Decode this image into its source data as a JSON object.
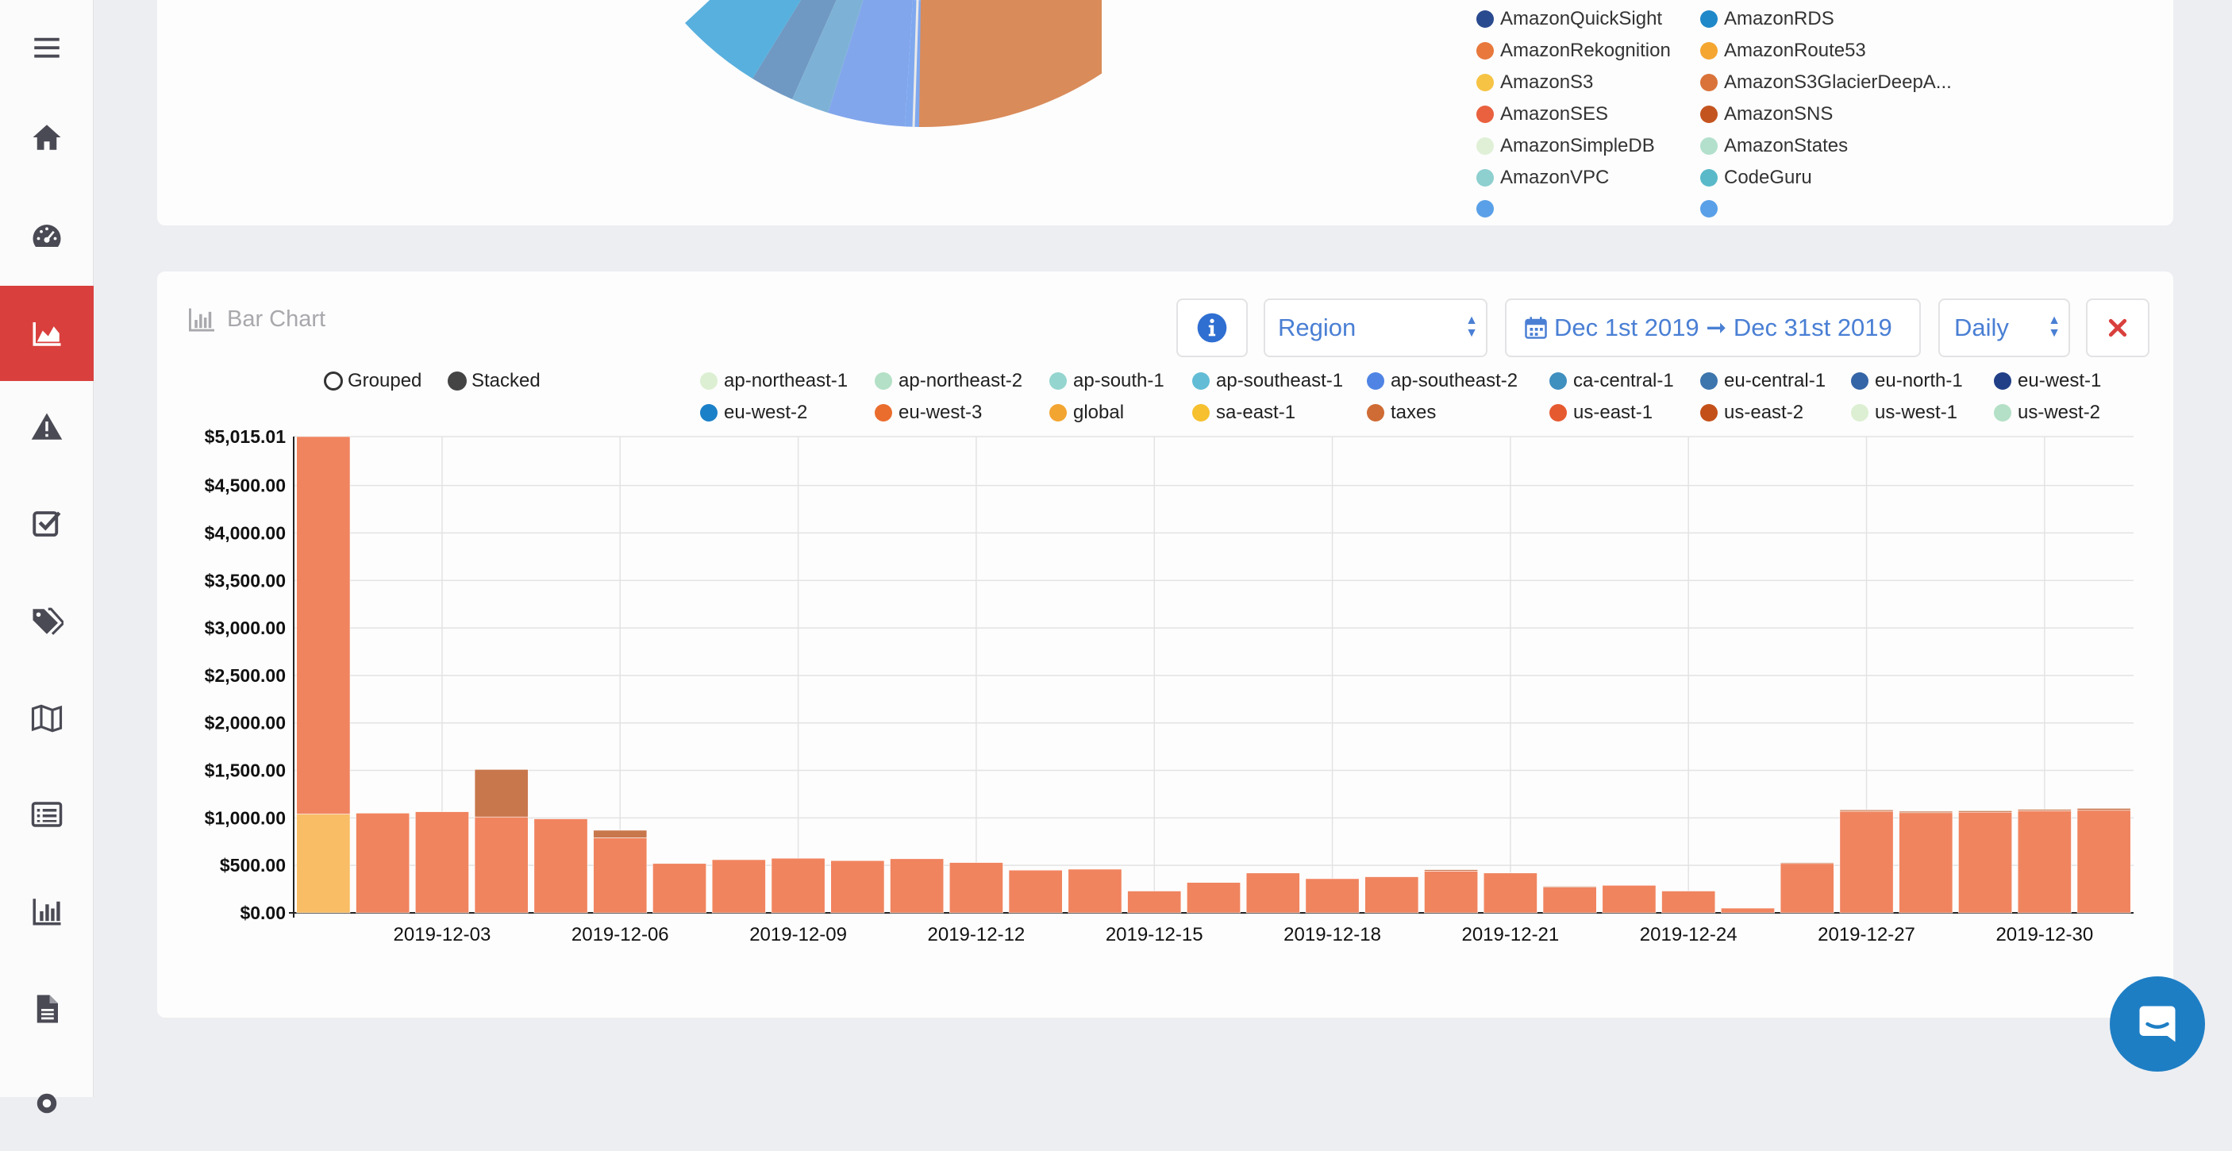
{
  "sidebar": {
    "items": [
      {
        "icon": "menu-icon",
        "active": false
      },
      {
        "icon": "home-icon",
        "active": false
      },
      {
        "icon": "dashboard-icon",
        "active": false
      },
      {
        "icon": "area-chart-icon",
        "active": true
      },
      {
        "icon": "warning-icon",
        "active": false
      },
      {
        "icon": "checklist-icon",
        "active": false
      },
      {
        "icon": "tags-icon",
        "active": false
      },
      {
        "icon": "map-icon",
        "active": false
      },
      {
        "icon": "list-icon",
        "active": false
      },
      {
        "icon": "bar-chart-icon",
        "active": false
      },
      {
        "icon": "document-icon",
        "active": false
      }
    ]
  },
  "donut_legend": {
    "col1": [
      {
        "label": "AmazonQuickSight",
        "color": "#2a4a8f"
      },
      {
        "label": "AmazonRekognition",
        "color": "#e8783c"
      },
      {
        "label": "AmazonS3",
        "color": "#f6c344"
      },
      {
        "label": "AmazonSES",
        "color": "#e9613e"
      },
      {
        "label": "AmazonSimpleDB",
        "color": "#dff0d6"
      },
      {
        "label": "AmazonVPC",
        "color": "#8ecfcf"
      }
    ],
    "col2": [
      {
        "label": "AmazonRDS",
        "color": "#1f88c9"
      },
      {
        "label": "AmazonRoute53",
        "color": "#f4a631"
      },
      {
        "label": "AmazonS3GlacierDeepA...",
        "color": "#d9733a"
      },
      {
        "label": "AmazonSNS",
        "color": "#c4541f"
      },
      {
        "label": "AmazonStates",
        "color": "#b2e0cc"
      },
      {
        "label": "CodeGuru",
        "color": "#5ab9c9"
      }
    ]
  },
  "bar_card": {
    "title": "Bar Chart",
    "group_by": "Region",
    "date_range": "Dec 1st 2019 ➞ Dec 31st 2019",
    "granularity": "Daily",
    "modes": {
      "grouped": "Grouped",
      "stacked": "Stacked",
      "selected": "stacked"
    },
    "legend": [
      {
        "label": "ap-northeast-1",
        "color": "#dcefd2"
      },
      {
        "label": "ap-northeast-2",
        "color": "#b3e0c6"
      },
      {
        "label": "ap-south-1",
        "color": "#94d5cf"
      },
      {
        "label": "ap-southeast-1",
        "color": "#62bcd6"
      },
      {
        "label": "ap-southeast-2",
        "color": "#4f84e4"
      },
      {
        "label": "ca-central-1",
        "color": "#3f8fbf"
      },
      {
        "label": "eu-central-1",
        "color": "#3d75ad"
      },
      {
        "label": "eu-north-1",
        "color": "#3465a6"
      },
      {
        "label": "eu-west-1",
        "color": "#213f87"
      },
      {
        "label": "eu-west-2",
        "color": "#1a80c8"
      },
      {
        "label": "eu-west-3",
        "color": "#ea6d2d"
      },
      {
        "label": "global",
        "color": "#f3a531"
      },
      {
        "label": "sa-east-1",
        "color": "#f6c02e"
      },
      {
        "label": "taxes",
        "color": "#cf6b34"
      },
      {
        "label": "us-east-1",
        "color": "#e65a30"
      },
      {
        "label": "us-east-2",
        "color": "#c45019"
      },
      {
        "label": "us-west-1",
        "color": "#dcefd2"
      },
      {
        "label": "us-west-2",
        "color": "#b3e0c6"
      }
    ]
  },
  "chart_data": {
    "type": "bar",
    "stacked": true,
    "title": "Bar Chart",
    "ylim": [
      0,
      5015.01
    ],
    "ytick_labels": [
      "$0.00",
      "$500.00",
      "$1,000.00",
      "$1,500.00",
      "$2,000.00",
      "$2,500.00",
      "$3,000.00",
      "$3,500.00",
      "$4,000.00",
      "$4,500.00",
      "$5,015.01"
    ],
    "ytick_values": [
      0,
      500,
      1000,
      1500,
      2000,
      2500,
      3000,
      3500,
      4000,
      4500,
      5015.01
    ],
    "categories": [
      "2019-12-01",
      "2019-12-02",
      "2019-12-03",
      "2019-12-04",
      "2019-12-05",
      "2019-12-06",
      "2019-12-07",
      "2019-12-08",
      "2019-12-09",
      "2019-12-10",
      "2019-12-11",
      "2019-12-12",
      "2019-12-13",
      "2019-12-14",
      "2019-12-15",
      "2019-12-16",
      "2019-12-17",
      "2019-12-18",
      "2019-12-19",
      "2019-12-20",
      "2019-12-21",
      "2019-12-22",
      "2019-12-23",
      "2019-12-24",
      "2019-12-25",
      "2019-12-26",
      "2019-12-27",
      "2019-12-28",
      "2019-12-29",
      "2019-12-30",
      "2019-12-31"
    ],
    "xtick_labels": [
      "2019-12-03",
      "2019-12-06",
      "2019-12-09",
      "2019-12-12",
      "2019-12-15",
      "2019-12-18",
      "2019-12-21",
      "2019-12-24",
      "2019-12-27",
      "2019-12-30"
    ],
    "series": [
      {
        "name": "global",
        "color": "#f9bd66",
        "values": [
          1040,
          0,
          0,
          0,
          0,
          0,
          0,
          0,
          0,
          0,
          0,
          0,
          0,
          0,
          0,
          0,
          0,
          0,
          0,
          0,
          0,
          0,
          0,
          0,
          0,
          0,
          0,
          0,
          0,
          0,
          0
        ]
      },
      {
        "name": "us-east-1",
        "color": "#f0845f",
        "values": [
          3975,
          1050,
          1065,
          1010,
          990,
          790,
          520,
          560,
          575,
          550,
          570,
          530,
          450,
          460,
          230,
          320,
          420,
          360,
          380,
          440,
          420,
          270,
          290,
          230,
          50,
          520,
          1070,
          1055,
          1060,
          1075,
          1080
        ]
      },
      {
        "name": "taxes",
        "color": "#c8774d",
        "values": [
          0,
          0,
          0,
          500,
          0,
          80,
          0,
          0,
          0,
          0,
          0,
          0,
          0,
          0,
          0,
          0,
          0,
          0,
          0,
          15,
          0,
          10,
          0,
          0,
          0,
          10,
          15,
          15,
          15,
          15,
          20
        ]
      }
    ]
  }
}
